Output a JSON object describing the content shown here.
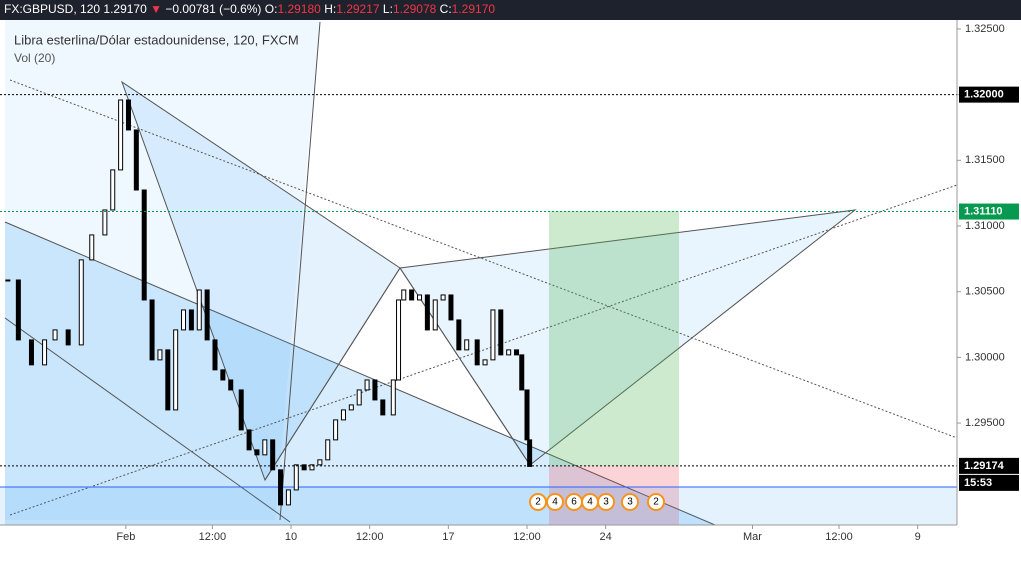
{
  "chart_data": {
    "type": "candlestick",
    "header": {
      "symbol": "FX:GBPUSD, 120",
      "last": "1.29170",
      "arrow": "▼",
      "change": "−0.00781 (−0.6%)",
      "o_label": "O:",
      "o": "1.29180",
      "h_label": "H:",
      "h": "1.29217",
      "l_label": "L:",
      "l": "1.29078",
      "c_label": "C:",
      "c": "1.29170"
    },
    "title": "Libra esterlina/Dólar estadounidense, 120, FXCM",
    "indicator": "Vol (20)",
    "x": [
      3,
      7,
      12,
      17,
      21,
      26,
      31,
      35,
      40,
      43,
      46,
      49,
      52,
      55,
      58,
      61,
      64,
      67,
      70,
      73,
      76,
      79,
      82,
      85,
      88,
      92,
      95,
      98,
      101,
      104,
      107,
      110,
      113,
      116,
      119,
      122,
      125,
      128,
      131,
      134,
      137,
      140,
      143,
      146,
      150,
      152,
      154,
      157,
      160,
      163,
      166,
      169,
      172,
      175,
      178,
      182,
      185,
      188,
      191,
      194,
      197,
      199,
      201,
      202
    ],
    "values": [
      1.30589,
      1.30133,
      1.29943,
      1.30133,
      1.30209,
      1.30095,
      1.30742,
      1.30932,
      1.31122,
      1.31427,
      1.31959,
      1.31731,
      1.31274,
      1.30437,
      1.29981,
      1.30057,
      1.296,
      1.30209,
      1.30361,
      1.30209,
      1.30513,
      1.30133,
      1.29905,
      1.29828,
      1.29752,
      1.29448,
      1.29296,
      1.29258,
      1.29372,
      1.29144,
      1.28877,
      1.28991,
      1.29182,
      1.29144,
      1.29182,
      1.2922,
      1.29372,
      1.29524,
      1.296,
      1.29638,
      1.29752,
      1.29828,
      1.29676,
      1.29562,
      1.29828,
      1.30437,
      1.30513,
      1.30437,
      1.30475,
      1.30209,
      1.30437,
      1.30475,
      1.30285,
      1.30057,
      1.30133,
      1.29943,
      1.29981,
      1.30361,
      1.30019,
      1.30057,
      1.30019,
      1.29752,
      1.29372,
      1.2917
    ],
    "up_color": "#ffffff",
    "down_color": "#000000",
    "xlim": [
      0,
      365
    ],
    "xticks": [
      {
        "value": 48,
        "label": "Feb"
      },
      {
        "value": 81,
        "label": "12:00"
      },
      {
        "value": 111,
        "label": "10"
      },
      {
        "value": 141,
        "label": "12:00"
      },
      {
        "value": 171,
        "label": "17"
      },
      {
        "value": 201,
        "label": "12:00"
      },
      {
        "value": 231,
        "label": "24"
      },
      {
        "value": 287,
        "label": "Mar"
      },
      {
        "value": 320,
        "label": "12:00"
      },
      {
        "value": 350,
        "label": "9"
      }
    ],
    "ylim": [
      1.28724,
      1.32568
    ],
    "yticks": [
      {
        "value": 1.325,
        "label": "1.32500"
      },
      {
        "value": 1.32,
        "label": "1.32000"
      },
      {
        "value": 1.315,
        "label": "1.31500"
      },
      {
        "value": 1.31,
        "label": "1.31000"
      },
      {
        "value": 1.305,
        "label": "1.30500"
      },
      {
        "value": 1.3,
        "label": "1.30000"
      },
      {
        "value": 1.295,
        "label": "1.29500"
      }
    ],
    "price_labels": [
      {
        "value": 1.32,
        "label": "1.32000",
        "color": "#000000"
      },
      {
        "value": 1.3111,
        "label": "1.31110",
        "color": "#089950"
      },
      {
        "value": 1.29174,
        "label": "1.29174",
        "color": "#000000"
      }
    ],
    "countdown": "15:53",
    "events": [
      "2",
      "4",
      "6",
      "4",
      "3",
      "3",
      "2"
    ]
  }
}
